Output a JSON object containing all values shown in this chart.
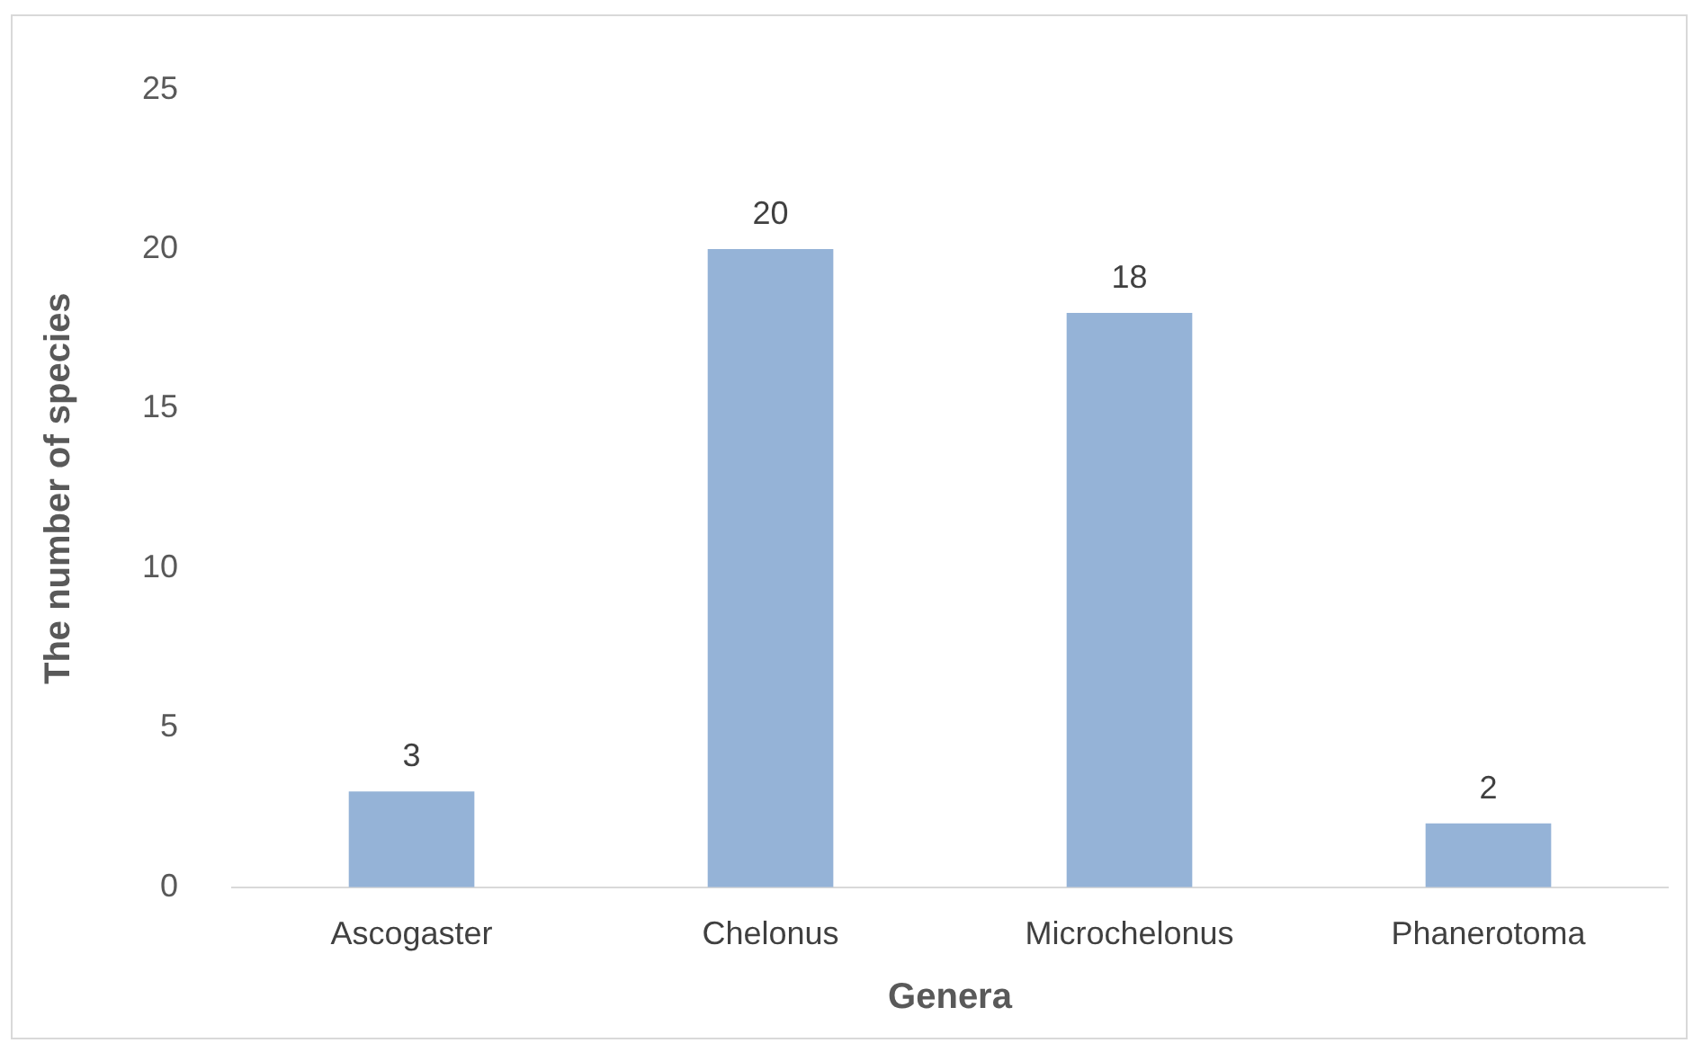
{
  "chart_data": {
    "type": "bar",
    "xlabel": "Genera",
    "ylabel": "The number of species",
    "categories": [
      "Ascogaster",
      "Chelonus",
      "Microchelonus",
      "Phanerotoma"
    ],
    "values": [
      3,
      20,
      18,
      2
    ],
    "color": "#95b3d7",
    "ylim": [
      0,
      25
    ],
    "yticks": [
      0,
      5,
      10,
      15,
      20,
      25
    ],
    "grid": false,
    "data_labels": true,
    "legend": false
  }
}
